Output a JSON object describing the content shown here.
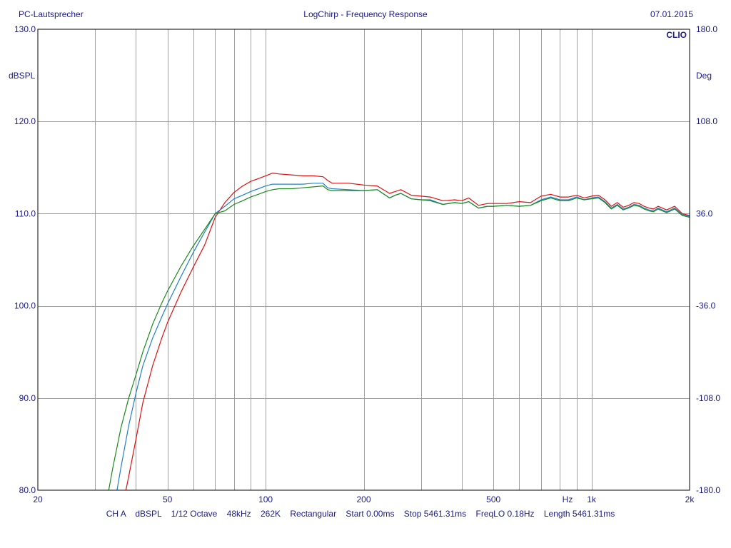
{
  "header": {
    "left": "PC-Lautsprecher",
    "center": "LogChirp - Frequency Response",
    "right": "07.01.2015"
  },
  "brand": "CLIO",
  "footer": {
    "info": "CH A    dBSPL    1/12 Octave    48kHz    262K    Rectangular    Start 0.00ms    Stop 5461.31ms    FreqLO 0.18Hz    Length 5461.31ms"
  },
  "chart_data": {
    "type": "line",
    "title": "LogChirp - Frequency Response",
    "xscale": "log",
    "xlim": [
      20,
      2000
    ],
    "ylim": [
      80,
      130
    ],
    "y2lim": [
      -180,
      180
    ],
    "ylabel": "dBSPL",
    "y2label": "Deg",
    "grid": true,
    "colors": {
      "frame": "#000000",
      "grid": "#a0a0a0",
      "text": "#1a1a8c"
    },
    "x_tick_labels": [
      {
        "x": 20,
        "label": "20"
      },
      {
        "x": 50,
        "label": "50"
      },
      {
        "x": 100,
        "label": "100"
      },
      {
        "x": 200,
        "label": "200"
      },
      {
        "x": 500,
        "label": "500"
      },
      {
        "x": 1000,
        "label": "1k"
      },
      {
        "x": 2000,
        "label": "2k"
      }
    ],
    "x_unit_label": "Hz",
    "y_ticks": [
      {
        "v": 130,
        "label": "130.0"
      },
      {
        "v": 120,
        "label": "120.0"
      },
      {
        "v": 110,
        "label": "110.0"
      },
      {
        "v": 100,
        "label": "100.0"
      },
      {
        "v": 90,
        "label": "90.0"
      },
      {
        "v": 80,
        "label": "80.0"
      }
    ],
    "y2_ticks": [
      {
        "v": 180,
        "label": "180.0"
      },
      {
        "v": 108,
        "label": "108.0"
      },
      {
        "v": 36,
        "label": "36.0"
      },
      {
        "v": -36,
        "label": "-36.0"
      },
      {
        "v": -108,
        "label": "-108.0"
      },
      {
        "v": -180,
        "label": "-180.0"
      }
    ],
    "series": [
      {
        "color": "#e01010",
        "x": [
          37,
          38,
          40,
          42,
          45,
          48,
          50,
          55,
          60,
          65,
          70,
          75,
          80,
          85,
          90,
          95,
          100,
          105,
          110,
          120,
          130,
          140,
          150,
          155,
          160,
          180,
          200,
          220,
          240,
          250,
          260,
          280,
          300,
          320,
          350,
          380,
          400,
          420,
          450,
          480,
          500,
          550,
          600,
          650,
          700,
          750,
          800,
          850,
          900,
          950,
          1000,
          1050,
          1100,
          1150,
          1200,
          1250,
          1300,
          1350,
          1400,
          1450,
          1500,
          1550,
          1600,
          1700,
          1800,
          1900,
          2000
        ],
        "y": [
          79.5,
          81.5,
          85.5,
          89.5,
          93.5,
          96.5,
          98.2,
          101.5,
          104.2,
          106.6,
          109.6,
          111.2,
          112.3,
          113.0,
          113.5,
          113.8,
          114.1,
          114.4,
          114.3,
          114.2,
          114.1,
          114.1,
          114.0,
          113.6,
          113.3,
          113.3,
          113.1,
          113.0,
          112.2,
          112.4,
          112.6,
          112.0,
          111.9,
          111.8,
          111.4,
          111.5,
          111.4,
          111.7,
          110.9,
          111.1,
          111.1,
          111.1,
          111.3,
          111.2,
          111.9,
          112.1,
          111.8,
          111.8,
          112.0,
          111.7,
          111.9,
          112.0,
          111.5,
          110.8,
          111.2,
          110.7,
          110.9,
          111.2,
          111.1,
          110.8,
          110.6,
          110.5,
          110.8,
          110.4,
          110.8,
          110.0,
          109.8
        ]
      },
      {
        "color": "#2080c8",
        "x": [
          35,
          36,
          38,
          40,
          42,
          45,
          48,
          50,
          55,
          60,
          65,
          70,
          75,
          80,
          85,
          90,
          95,
          100,
          105,
          110,
          120,
          130,
          140,
          150,
          155,
          160,
          180,
          200,
          220,
          240,
          250,
          260,
          280,
          300,
          320,
          350,
          380,
          400,
          420,
          450,
          480,
          500,
          550,
          600,
          650,
          700,
          750,
          800,
          850,
          900,
          950,
          1000,
          1050,
          1100,
          1150,
          1200,
          1250,
          1300,
          1350,
          1400,
          1450,
          1500,
          1550,
          1600,
          1700,
          1800,
          1900,
          2000
        ],
        "y": [
          80.0,
          82.5,
          87.0,
          90.5,
          93.5,
          96.5,
          98.8,
          100.2,
          103.2,
          105.8,
          108.0,
          110.0,
          110.8,
          111.6,
          112.0,
          112.4,
          112.7,
          113.0,
          113.2,
          113.2,
          113.2,
          113.2,
          113.3,
          113.3,
          112.8,
          112.7,
          112.6,
          112.5,
          112.6,
          111.7,
          112.0,
          112.2,
          111.6,
          111.5,
          111.5,
          111.0,
          111.2,
          111.1,
          111.3,
          110.6,
          110.8,
          110.8,
          110.9,
          110.8,
          110.9,
          111.5,
          111.8,
          111.5,
          111.5,
          111.8,
          111.5,
          111.7,
          111.8,
          111.3,
          110.6,
          111.0,
          110.5,
          110.7,
          111.0,
          110.9,
          110.6,
          110.4,
          110.3,
          110.6,
          110.2,
          110.6,
          109.9,
          109.7
        ]
      },
      {
        "color": "#1a8a1a",
        "x": [
          33,
          34,
          36,
          38,
          40,
          42,
          45,
          48,
          50,
          55,
          60,
          65,
          70,
          75,
          80,
          85,
          90,
          95,
          100,
          105,
          110,
          120,
          130,
          140,
          150,
          155,
          160,
          180,
          200,
          220,
          240,
          250,
          260,
          280,
          300,
          320,
          350,
          380,
          400,
          420,
          450,
          480,
          500,
          550,
          600,
          650,
          700,
          750,
          800,
          850,
          900,
          950,
          1000,
          1050,
          1100,
          1150,
          1200,
          1250,
          1300,
          1350,
          1400,
          1450,
          1500,
          1550,
          1600,
          1700,
          1800,
          1900,
          2000
        ],
        "y": [
          80.0,
          82.5,
          86.8,
          90.0,
          92.5,
          95.0,
          98.0,
          100.3,
          101.6,
          104.3,
          106.5,
          108.3,
          110.0,
          110.3,
          111.0,
          111.4,
          111.8,
          112.1,
          112.4,
          112.6,
          112.7,
          112.7,
          112.8,
          112.9,
          113.0,
          112.6,
          112.5,
          112.5,
          112.5,
          112.6,
          111.7,
          112.0,
          112.2,
          111.6,
          111.5,
          111.4,
          111.0,
          111.2,
          111.1,
          111.3,
          110.6,
          110.8,
          110.8,
          110.9,
          110.8,
          110.9,
          111.4,
          111.7,
          111.4,
          111.4,
          111.7,
          111.5,
          111.6,
          111.7,
          111.2,
          110.5,
          110.9,
          110.4,
          110.6,
          110.9,
          110.8,
          110.5,
          110.3,
          110.2,
          110.5,
          110.1,
          110.5,
          109.8,
          109.6
        ]
      }
    ]
  }
}
